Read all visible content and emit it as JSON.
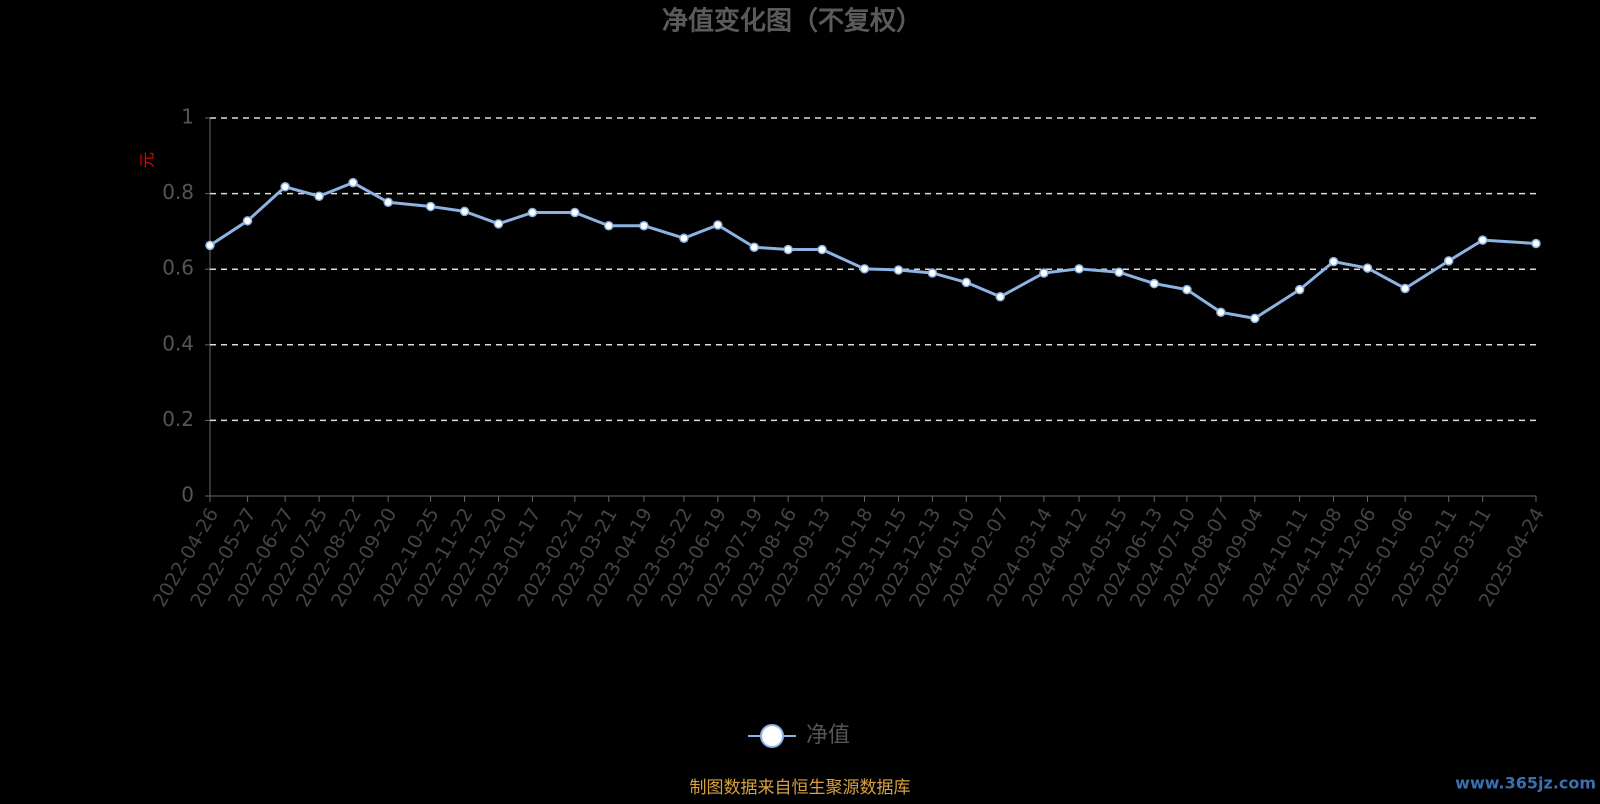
{
  "chart_data": {
    "type": "line",
    "title": "净值变化图（不复权）",
    "y_label": "元",
    "x": [
      "2022-04-26",
      "2022-05-27",
      "2022-06-27",
      "2022-07-25",
      "2022-08-22",
      "2022-09-20",
      "2022-10-25",
      "2022-11-22",
      "2022-12-20",
      "2023-01-17",
      "2023-02-21",
      "2023-03-21",
      "2023-04-19",
      "2023-05-22",
      "2023-06-19",
      "2023-07-19",
      "2023-08-16",
      "2023-09-13",
      "2023-10-18",
      "2023-11-15",
      "2023-12-13",
      "2024-01-10",
      "2024-02-07",
      "2024-03-14",
      "2024-04-12",
      "2024-05-15",
      "2024-06-13",
      "2024-07-10",
      "2024-08-07",
      "2024-09-04",
      "2024-10-11",
      "2024-11-08",
      "2024-12-06",
      "2025-01-06",
      "2025-02-11",
      "2025-03-11",
      "2025-04-24"
    ],
    "xlim": [
      "2022-04-26",
      "2025-04-24"
    ],
    "series": [
      {
        "name": "净值",
        "color": "#8db3e2",
        "values": [
          0.663,
          0.728,
          0.818,
          0.793,
          0.829,
          0.777,
          0.766,
          0.753,
          0.72,
          0.75,
          0.75,
          0.715,
          0.715,
          0.682,
          0.717,
          0.658,
          0.652,
          0.652,
          0.601,
          0.598,
          0.59,
          0.565,
          0.527,
          0.59,
          0.601,
          0.592,
          0.562,
          0.546,
          0.486,
          0.47,
          0.546,
          0.62,
          0.603,
          0.549,
          0.622,
          0.677,
          0.668
        ]
      }
    ],
    "ylim": [
      0,
      1
    ],
    "yticks": [
      0,
      0.2,
      0.4,
      0.6,
      0.8,
      1
    ],
    "grid": true,
    "source": "制图数据来自恒生聚源数据库",
    "watermark": "www.365jz.com"
  }
}
